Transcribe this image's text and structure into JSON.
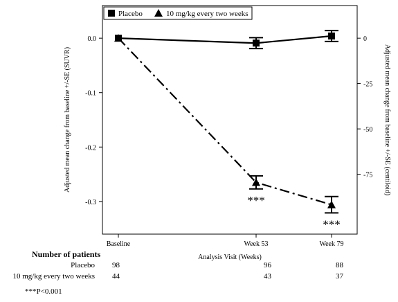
{
  "chart_data": {
    "type": "line",
    "categories": [
      "Baseline",
      "Week 53",
      "Week 79"
    ],
    "xlabel": "Analysis Visit (Weeks)",
    "ylabel": "Adjusted mean change from baseline +/-SE (SUVR)",
    "ylabel_right": "Adjusted mean change from baseline +/-SE (centiloid)",
    "ylim": [
      -0.36,
      0.06
    ],
    "y_ticks": [
      "0.0",
      "-0.1",
      "-0.2",
      "-0.3"
    ],
    "y_tick_values": [
      0.0,
      -0.1,
      -0.2,
      -0.3
    ],
    "y2_ticks": [
      "0",
      "-25",
      "-50",
      "-75"
    ],
    "y2_tick_values": [
      0.0,
      -0.0833,
      -0.1667,
      -0.25
    ],
    "legend_position": "top-left",
    "series": [
      {
        "name": "Placebo",
        "marker": "square",
        "line_style": "solid",
        "x": [
          0,
          1,
          2
        ],
        "values": [
          0.0,
          -0.009,
          0.004
        ],
        "se": [
          0.0,
          0.01,
          0.01
        ]
      },
      {
        "name": "10 mg/kg every two weeks",
        "marker": "triangle",
        "line_style": "dashdot",
        "x": [
          0,
          1,
          2
        ],
        "values": [
          0.0,
          -0.265,
          -0.306
        ],
        "se": [
          0.0,
          0.012,
          0.015
        ],
        "annotations": [
          "",
          "***",
          "***"
        ]
      }
    ]
  },
  "patients": {
    "title": "Number of patients",
    "rows": [
      {
        "label": "Placebo",
        "counts": [
          "98",
          "96",
          "88"
        ]
      },
      {
        "label": "10 mg/kg every two weeks",
        "counts": [
          "44",
          "43",
          "37"
        ]
      }
    ]
  },
  "footnote": "***P<0.001"
}
